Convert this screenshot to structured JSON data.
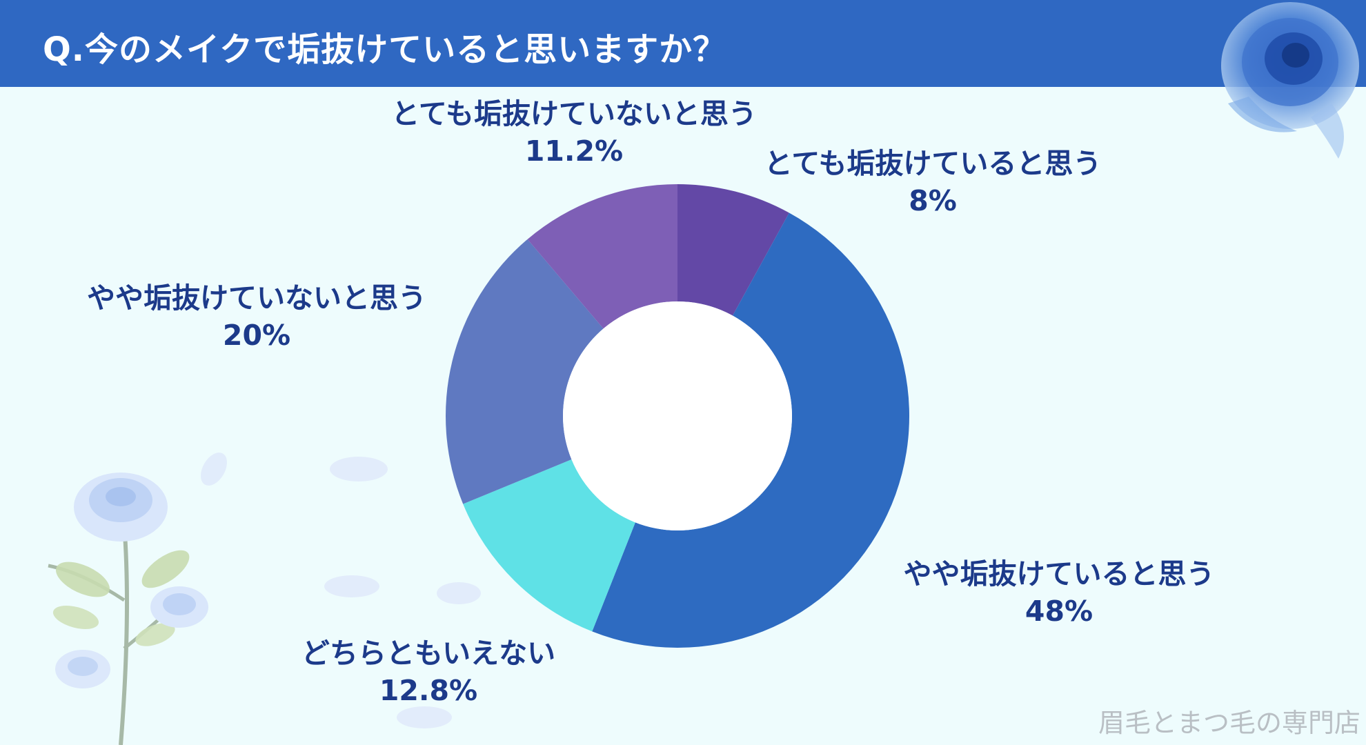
{
  "header": {
    "title": "Q.今のメイクで垢抜けていると思いますか？"
  },
  "chart_data": {
    "type": "pie",
    "variant": "donut",
    "title": "",
    "categories": [
      "とても垢抜けていると思う",
      "やや垢抜けていると思う",
      "どちらともいえない",
      "やや垢抜けていないと思う",
      "とても垢抜けていないと思う"
    ],
    "values": [
      8,
      48,
      12.8,
      20,
      11.2
    ],
    "value_labels": [
      "8%",
      "48%",
      "12.8%",
      "20%",
      "11.2%"
    ],
    "colors": [
      "#6348a6",
      "#2e6bc1",
      "#5fe1e6",
      "#5f79c1",
      "#7e5fb6"
    ],
    "unit": "%",
    "legend": "none"
  },
  "footer": {
    "watermark": "眉毛とまつ毛の専門店"
  },
  "decorations": {
    "top_right": "blue-rose-icon",
    "bottom_left": "blue-rose-stem-icon"
  }
}
